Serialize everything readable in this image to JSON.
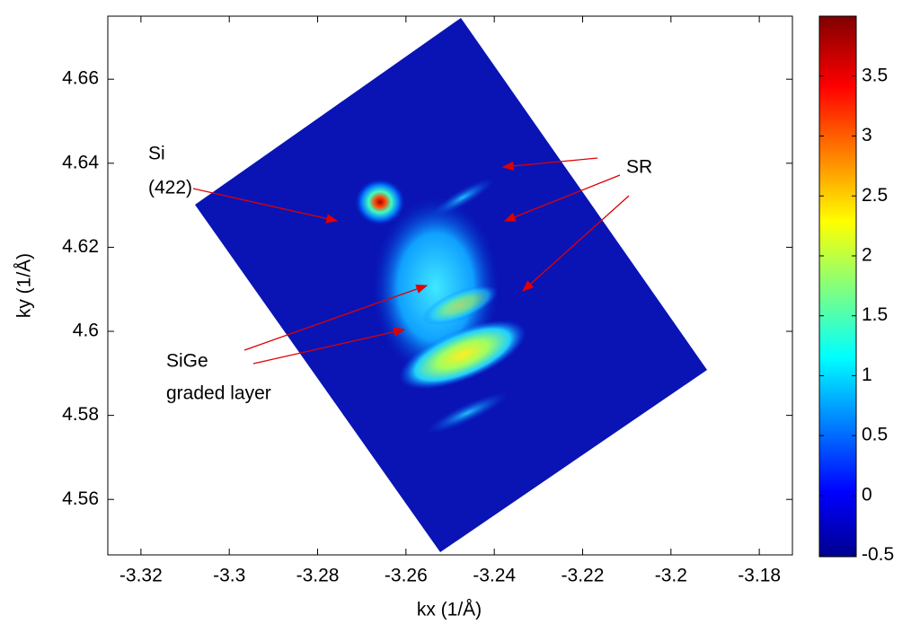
{
  "chart_data": {
    "type": "heatmap",
    "xlabel": "kx (1/Å)",
    "ylabel": "ky (1/Å)",
    "xlim": [
      -3.3275,
      -3.1725
    ],
    "xticks": [
      -3.32,
      -3.3,
      -3.28,
      -3.26,
      -3.24,
      -3.22,
      -3.2,
      -3.18
    ],
    "ylim": [
      4.5468,
      4.675
    ],
    "yticks": [
      4.56,
      4.58,
      4.6,
      4.62,
      4.64,
      4.66
    ],
    "clim": [
      -0.51,
      4.0
    ],
    "cticks": [
      -0.5,
      0,
      0.5,
      1,
      1.5,
      2,
      2.5,
      3,
      3.5
    ],
    "annotations": [
      "Si",
      "(422)",
      "SR",
      "SiGe",
      "graded layer"
    ]
  }
}
